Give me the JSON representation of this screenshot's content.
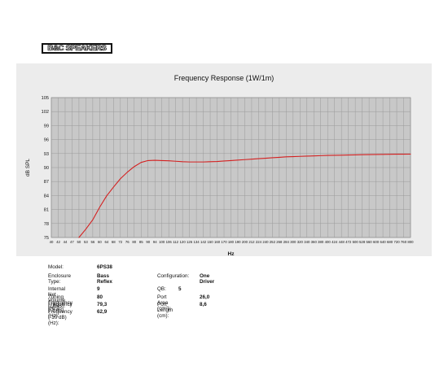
{
  "brand": {
    "logo_text": "B&C SPEAKERS"
  },
  "chart_data": {
    "type": "line",
    "title": "Frequency Response (1W/1m)",
    "xlabel": "Hz",
    "ylabel": "dB SPL",
    "ylim": [
      75,
      105
    ],
    "yticks": [
      75,
      78,
      81,
      84,
      87,
      90,
      93,
      96,
      99,
      102,
      105
    ],
    "xticks": [
      "40",
      "42",
      "44",
      "47",
      "50",
      "53",
      "56",
      "60",
      "64",
      "68",
      "72",
      "76",
      "80",
      "85",
      "90",
      "94",
      "100",
      "106",
      "112",
      "120",
      "126",
      "134",
      "142",
      "150",
      "160",
      "170",
      "180",
      "190",
      "200",
      "212",
      "224",
      "240",
      "252",
      "268",
      "284",
      "300",
      "320",
      "340",
      "360",
      "380",
      "400",
      "424",
      "448",
      "472",
      "500",
      "528",
      "560",
      "600",
      "640",
      "680",
      "720",
      "760",
      "800"
    ],
    "grid": true,
    "series": [
      {
        "color": "#d42020",
        "x": [
          50,
          53,
          56,
          60,
          64,
          68,
          72,
          76,
          80,
          85,
          90,
          94,
          100,
          106,
          112,
          120,
          126,
          134,
          142,
          150,
          160,
          170,
          180,
          190,
          200,
          212,
          224,
          240,
          252,
          268,
          284,
          300,
          320,
          340,
          360,
          380,
          400,
          424,
          448,
          472,
          500,
          528,
          560,
          600,
          640,
          680,
          720,
          760,
          800
        ],
        "y": [
          75.0,
          76.8,
          78.8,
          81.5,
          83.9,
          85.8,
          87.6,
          89.0,
          90.2,
          91.1,
          91.5,
          91.55,
          91.5,
          91.45,
          91.35,
          91.25,
          91.2,
          91.2,
          91.2,
          91.25,
          91.3,
          91.4,
          91.5,
          91.6,
          91.7,
          91.8,
          91.9,
          92.0,
          92.1,
          92.2,
          92.3,
          92.35,
          92.4,
          92.45,
          92.5,
          92.55,
          92.6,
          92.62,
          92.65,
          92.7,
          92.72,
          92.75,
          92.78,
          92.8,
          92.82,
          92.84,
          92.86,
          92.87,
          92.88
        ]
      }
    ]
  },
  "specs": {
    "model_label": "Model:",
    "model_value": "6PS38",
    "enclosure_label": "Enclosure Type:",
    "enclosure_value": "Bass Reflex",
    "configuration_label": "Configuration:",
    "configuration_value": "One Driver",
    "volume_label": "Internal Net Volume (Litres):",
    "volume_value": "9",
    "qb_label": "QB:",
    "qb_value": "5",
    "tuning_label": "Tuning Frequency (Hz):",
    "tuning_value": "80",
    "port_area_label": "Port Area (cm²):",
    "port_area_value": "26,0",
    "f3_label": "Frequency (-3 dB) (Hz):",
    "f3_value": "79,3",
    "port_length_label": "Port Length (cm):",
    "port_length_value": "8,6",
    "f10_label": "Frequency (-10 dB) (Hz):",
    "f10_value": "62,9"
  }
}
